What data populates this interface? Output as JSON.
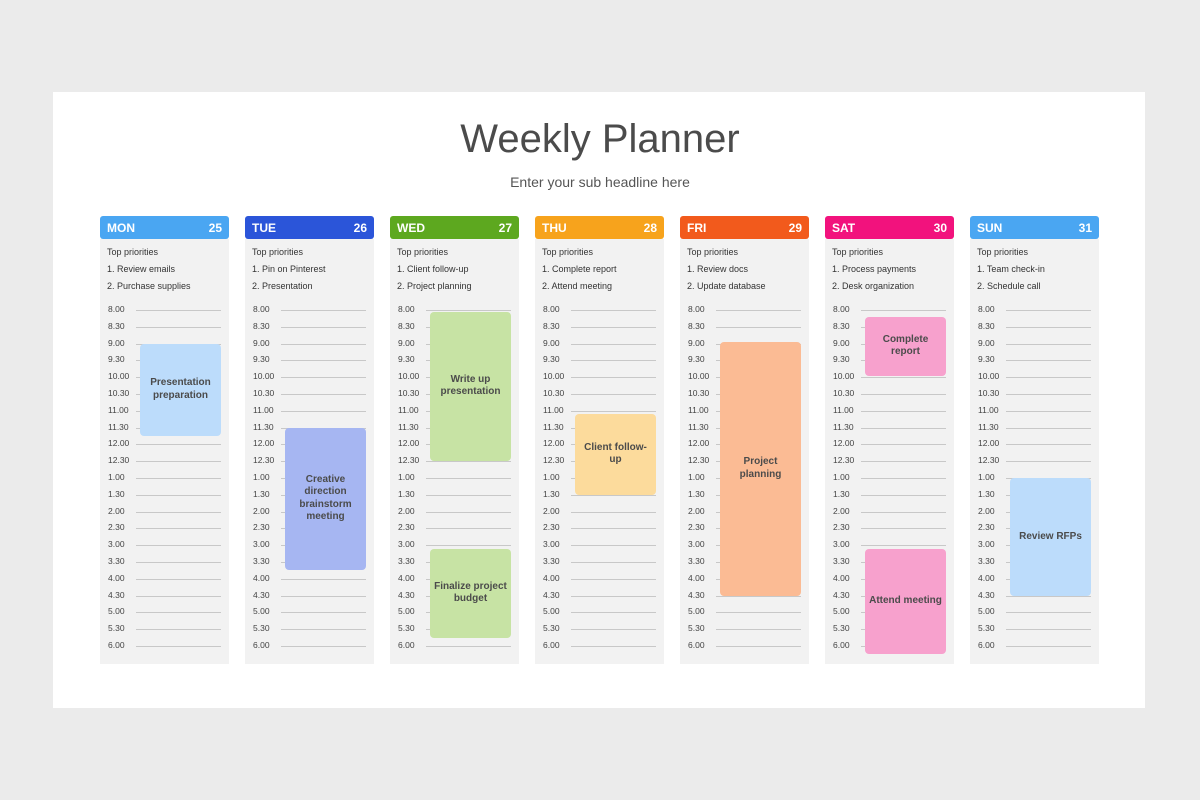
{
  "title": "Weekly Planner",
  "subtitle": "Enter your sub headline here",
  "priorities_label": "Top priorities",
  "times": [
    "8.00",
    "8.30",
    "9.00",
    "9.30",
    "10.00",
    "10.30",
    "11.00",
    "11.30",
    "12.00",
    "12.30",
    "1.00",
    "1.30",
    "2.00",
    "2.30",
    "3.00",
    "3.30",
    "4.00",
    "4.30",
    "5.00",
    "5.30",
    "6.00"
  ],
  "days": [
    {
      "name": "MON",
      "date": "25",
      "color": "#4aa6f2",
      "priorities": [
        "1. Review emails",
        "2. Purchase supplies"
      ],
      "events": [
        {
          "label": "Presentation preparation",
          "start": 2,
          "end": 7.5,
          "color": "#bcdcfb"
        }
      ]
    },
    {
      "name": "TUE",
      "date": "26",
      "color": "#2b55d9",
      "priorities": [
        "1. Pin on Pinterest",
        "2. Presentation"
      ],
      "events": [
        {
          "label": "Creative direction brainstorm meeting",
          "start": 7,
          "end": 15.5,
          "color": "#a6b6f2"
        }
      ]
    },
    {
      "name": "WED",
      "date": "27",
      "color": "#5da81f",
      "priorities": [
        "1. Client follow-up",
        "2. Project planning"
      ],
      "events": [
        {
          "label": "Write up presentation",
          "start": 0.1,
          "end": 9,
          "color": "#c7e3a4"
        },
        {
          "label": "Finalize project budget",
          "start": 14.2,
          "end": 19.5,
          "color": "#c7e3a4"
        }
      ]
    },
    {
      "name": "THU",
      "date": "28",
      "color": "#f7a31c",
      "priorities": [
        "1. Complete report",
        "2. Attend meeting"
      ],
      "events": [
        {
          "label": "Client follow-up",
          "start": 6.2,
          "end": 11,
          "color": "#fcdb9c"
        }
      ]
    },
    {
      "name": "FRI",
      "date": "29",
      "color": "#f25a1c",
      "priorities": [
        "1. Review docs",
        "2. Update database"
      ],
      "events": [
        {
          "label": "Project planning",
          "start": 1.9,
          "end": 17,
          "color": "#fbbb94"
        }
      ]
    },
    {
      "name": "SAT",
      "date": "30",
      "color": "#f2127d",
      "priorities": [
        "1. Process payments",
        "2. Desk organization"
      ],
      "events": [
        {
          "label": "Complete report",
          "start": 0.4,
          "end": 3.9,
          "color": "#f7a1cd"
        },
        {
          "label": "Attend meeting",
          "start": 14.2,
          "end": 20.5,
          "color": "#f7a1cd"
        }
      ]
    },
    {
      "name": "SUN",
      "date": "31",
      "color": "#4aa6f2",
      "priorities": [
        "1. Team check-in",
        "2. Schedule call"
      ],
      "events": [
        {
          "label": "Review RFPs",
          "start": 10,
          "end": 17,
          "color": "#bcdcfb"
        }
      ]
    }
  ]
}
